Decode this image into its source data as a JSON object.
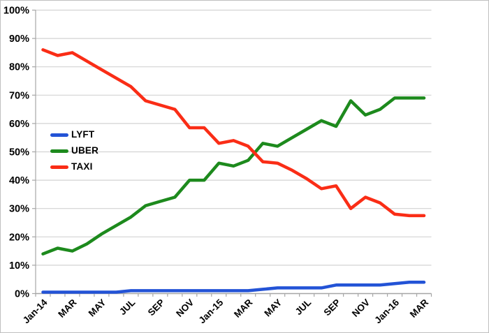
{
  "chart_data": {
    "type": "line",
    "x": [
      "Jan-14",
      "Feb-14",
      "Mar-14",
      "Apr-14",
      "May-14",
      "Jun-14",
      "Jul-14",
      "Aug-14",
      "Sep-14",
      "Oct-14",
      "Nov-14",
      "Dec-14",
      "Jan-15",
      "Feb-15",
      "Mar-15",
      "Apr-15",
      "May-15",
      "Jun-15",
      "Jul-15",
      "Aug-15",
      "Sep-15",
      "Oct-15",
      "Nov-15",
      "Dec-15",
      "Jan-16",
      "Feb-16",
      "Mar-16"
    ],
    "x_tick_labels": [
      "Jan-14",
      "MAR",
      "MAY",
      "JUL",
      "SEP",
      "NOV",
      "Jan-15",
      "MAR",
      "MAY",
      "JUL",
      "SEP",
      "NOV",
      "Jan-16",
      "MAR"
    ],
    "y_axis": {
      "min": 0,
      "max": 100,
      "step": 10,
      "tick_labels": [
        "0%",
        "10%",
        "20%",
        "30%",
        "40%",
        "50%",
        "60%",
        "70%",
        "80%",
        "90%",
        "100%"
      ]
    },
    "grid": "horizontal",
    "legend": {
      "position": "inside-left-middle",
      "items": [
        "LYFT",
        "UBER",
        "TAXI"
      ]
    },
    "series": [
      {
        "name": "LYFT",
        "color": "#2353D6",
        "values": [
          0.5,
          0.5,
          0.5,
          0.5,
          0.5,
          0.5,
          1,
          1,
          1,
          1,
          1,
          1,
          1,
          1,
          1,
          1.5,
          2,
          2,
          2,
          2,
          3,
          3,
          3,
          3,
          3.5,
          4,
          4
        ]
      },
      {
        "name": "UBER",
        "color": "#1D8A1D",
        "values": [
          14,
          16,
          15,
          17.5,
          21,
          24,
          27,
          31,
          32.5,
          34,
          40,
          40,
          46,
          45,
          47,
          53,
          52,
          55,
          58,
          61,
          59,
          68,
          63,
          65,
          69,
          69,
          69
        ]
      },
      {
        "name": "TAXI",
        "color": "#FA2D16",
        "values": [
          86,
          84,
          85,
          82,
          79,
          76,
          73,
          68,
          66.5,
          65,
          58.5,
          58.5,
          53,
          54,
          52,
          46.5,
          46,
          43.5,
          40.5,
          37,
          38,
          30,
          34,
          32,
          28,
          27.5,
          27.5
        ]
      }
    ],
    "colors": {
      "axis": "#A6A6A6",
      "gridline": "#D3D3D3",
      "label_text": "#000000"
    }
  }
}
